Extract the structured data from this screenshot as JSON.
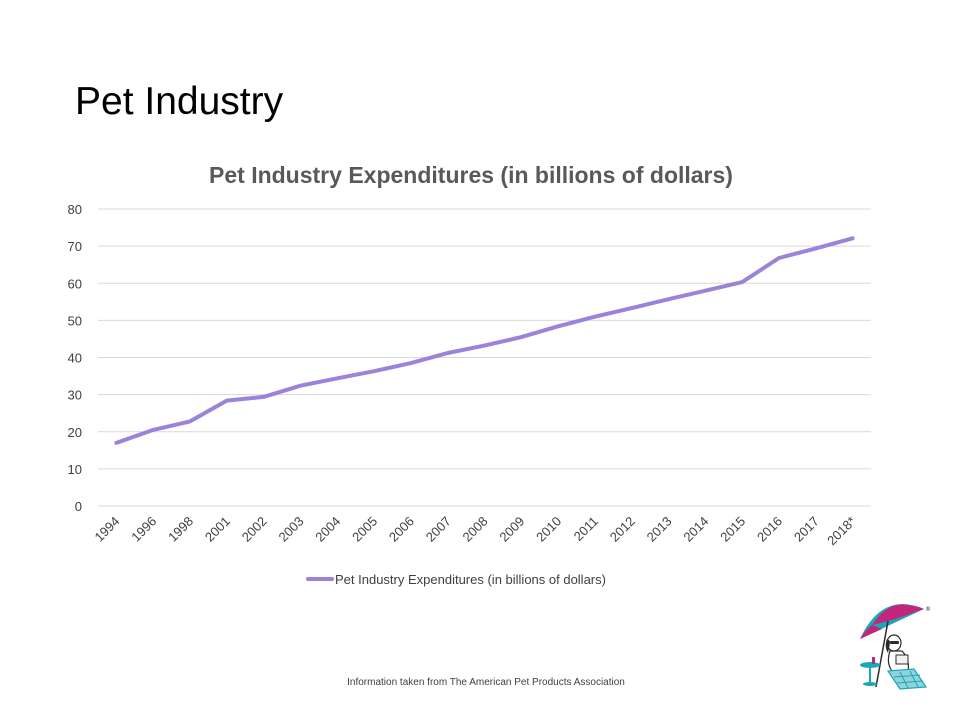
{
  "slide": {
    "title": "Pet Industry",
    "footer": "Information taken from The American Pet Products Association"
  },
  "logo": {
    "icon": "beach-umbrella-dog-icon"
  },
  "chart_data": {
    "type": "line",
    "title": "Pet Industry Expenditures (in billions of dollars)",
    "xlabel": "",
    "ylabel": "",
    "categories": [
      "1994",
      "1996",
      "1998",
      "2001",
      "2002",
      "2003",
      "2004",
      "2005",
      "2006",
      "2007",
      "2008",
      "2009",
      "2010",
      "2011",
      "2012",
      "2013",
      "2014",
      "2015",
      "2016",
      "2017",
      "2018*"
    ],
    "series": [
      {
        "name": "Pet Industry Expenditures (in billions of dollars)",
        "color": "#9A83D9",
        "values": [
          17,
          20.5,
          22.8,
          28.4,
          29.4,
          32.4,
          34.4,
          36.3,
          38.5,
          41.2,
          43.2,
          45.5,
          48.4,
          51,
          53.3,
          55.7,
          58,
          60.3,
          66.8,
          69.4,
          72.1
        ]
      }
    ],
    "ylim": [
      0,
      80
    ],
    "yticks": [
      0,
      10,
      20,
      30,
      40,
      50,
      60,
      70,
      80
    ],
    "grid": true,
    "legend": "bottom"
  }
}
